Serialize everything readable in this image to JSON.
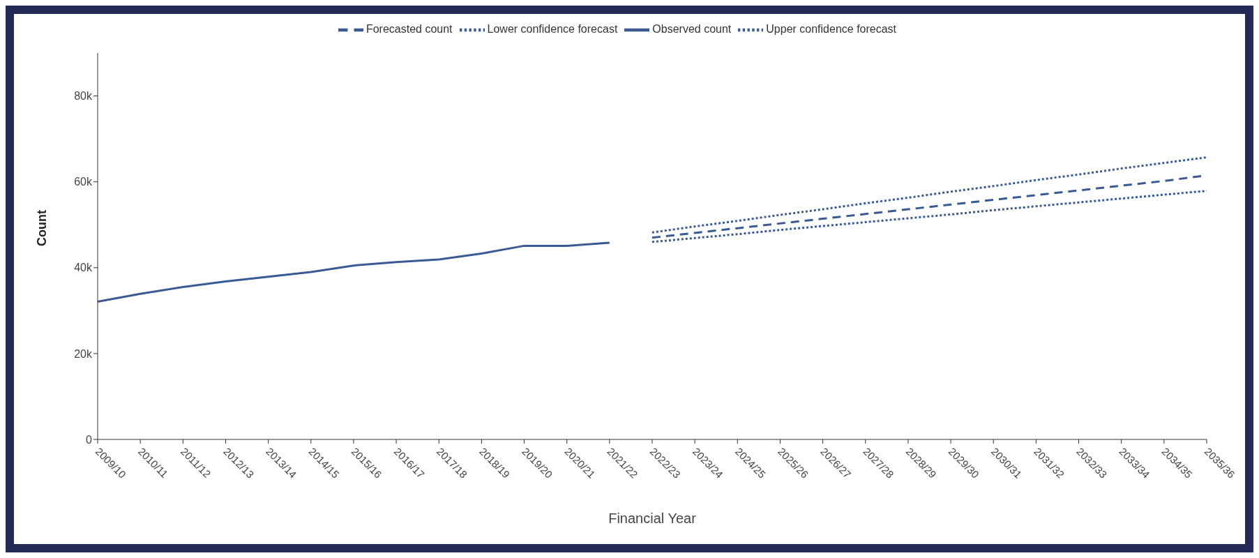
{
  "chart_data": {
    "type": "line",
    "xlabel": "Financial Year",
    "ylabel": "Count",
    "categories": [
      "2009/10",
      "2010/11",
      "2011/12",
      "2012/13",
      "2013/14",
      "2014/15",
      "2015/16",
      "2016/17",
      "2017/18",
      "2018/19",
      "2019/20",
      "2020/21",
      "2021/22",
      "2022/23",
      "2023/24",
      "2024/25",
      "2025/26",
      "2026/27",
      "2027/28",
      "2028/29",
      "2029/30",
      "2030/31",
      "2031/32",
      "2032/33",
      "2033/34",
      "2034/35",
      "2035/36"
    ],
    "series": [
      {
        "name": "Observed count",
        "color": "#3a5a94",
        "line_style": "solid",
        "values": [
          32100,
          33900,
          35500,
          36800,
          37900,
          39000,
          40500,
          41300,
          41900,
          43300,
          45100,
          45100,
          45800,
          null,
          null,
          null,
          null,
          null,
          null,
          null,
          null,
          null,
          null,
          null,
          null,
          null,
          null
        ]
      },
      {
        "name": "Forecasted count",
        "color": "#3a5a94",
        "line_style": "dashed",
        "values": [
          null,
          null,
          null,
          null,
          null,
          null,
          null,
          null,
          null,
          null,
          null,
          null,
          null,
          47000,
          48100,
          49200,
          50300,
          51400,
          52500,
          53600,
          54700,
          55800,
          56900,
          58000,
          59100,
          60200,
          61500
        ]
      },
      {
        "name": "Lower confidence forecast",
        "color": "#3a5a94",
        "line_style": "dotted",
        "values": [
          null,
          null,
          null,
          null,
          null,
          null,
          null,
          null,
          null,
          null,
          null,
          null,
          null,
          46000,
          46900,
          47800,
          48800,
          49700,
          50600,
          51500,
          52400,
          53400,
          54300,
          55200,
          56100,
          57000,
          57900
        ]
      },
      {
        "name": "Upper confidence forecast",
        "color": "#3a5a94",
        "line_style": "dotted",
        "values": [
          null,
          null,
          null,
          null,
          null,
          null,
          null,
          null,
          null,
          null,
          null,
          null,
          null,
          48200,
          49600,
          50900,
          52300,
          53600,
          55000,
          56300,
          57700,
          59000,
          60400,
          61700,
          63100,
          64400,
          65700
        ]
      }
    ],
    "ylim": [
      0,
      90000
    ],
    "yticks": [
      {
        "value": 0,
        "label": "0"
      },
      {
        "value": 20000,
        "label": "20k"
      },
      {
        "value": 40000,
        "label": "40k"
      },
      {
        "value": 60000,
        "label": "60k"
      },
      {
        "value": 80000,
        "label": "80k"
      }
    ],
    "grid": false,
    "legend": "top",
    "marker": "none"
  }
}
